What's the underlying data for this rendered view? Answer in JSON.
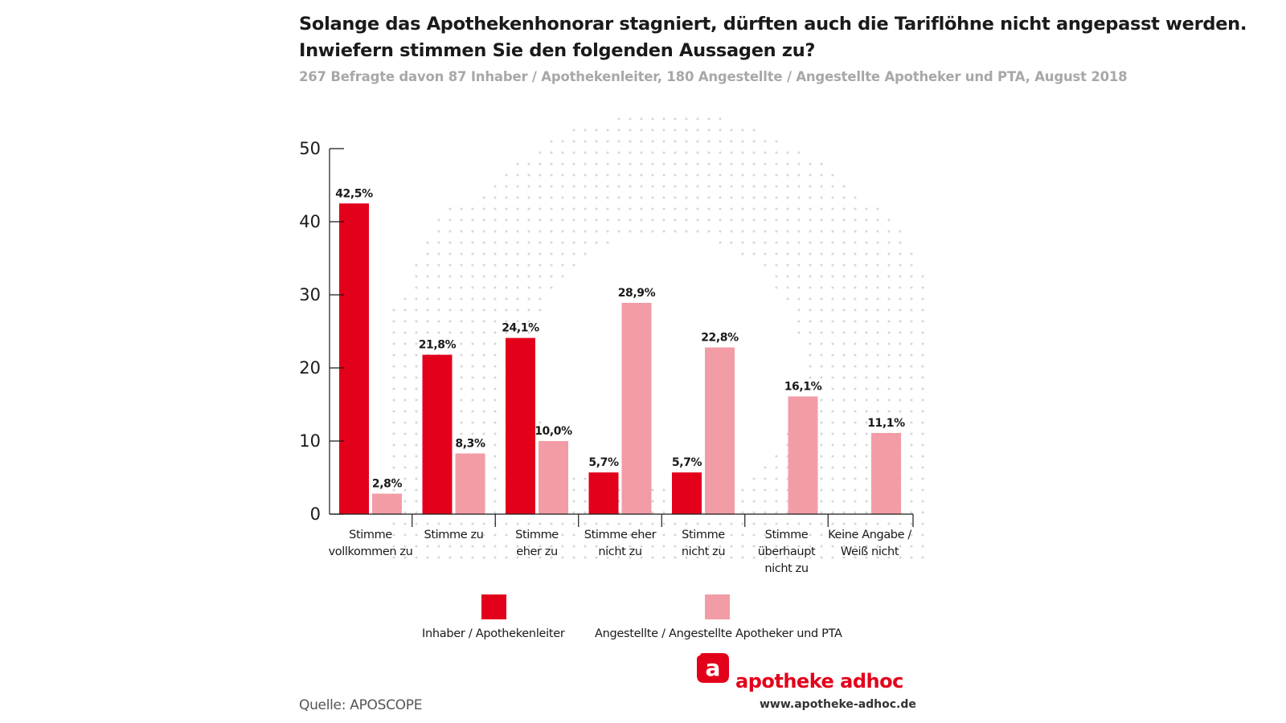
{
  "header": {
    "title_line1": "Solange das Apothekenhonorar stagniert, dürften auch die Tariflöhne nicht angepasst werden.",
    "title_line2": "Inwiefern stimmen Sie den folgenden Aussagen zu?",
    "subtitle": "267 Befragte davon 87 Inhaber / Apothekenleiter, 180 Angestellte / Angestellte Apotheker und PTA, August 2018"
  },
  "chart_data": {
    "type": "bar",
    "categories": [
      [
        "Stimme",
        "vollkommen zu"
      ],
      [
        "Stimme zu"
      ],
      [
        "Stimme",
        "eher zu"
      ],
      [
        "Stimme eher",
        "nicht zu"
      ],
      [
        "Stimme",
        "nicht zu"
      ],
      [
        "Stimme",
        "überhaupt",
        "nicht zu"
      ],
      [
        "Keine Angabe /",
        "Weiß nicht"
      ]
    ],
    "series": [
      {
        "name": "Inhaber / Apothekenleiter",
        "color": "#e3001b",
        "values": [
          42.5,
          21.8,
          24.1,
          5.7,
          5.7,
          null,
          null
        ],
        "labels": [
          "42,5%",
          "21,8%",
          "24,1%",
          "5,7%",
          "5,7%",
          null,
          null
        ]
      },
      {
        "name": "Angestellte / Angestellte Apotheker und PTA",
        "color": "#f29ca6",
        "values": [
          2.8,
          8.3,
          10.0,
          28.9,
          22.8,
          16.1,
          11.1
        ],
        "labels": [
          "2,8%",
          "8,3%",
          "10,0%",
          "28,9%",
          "22,8%",
          "16,1%",
          "11,1%"
        ]
      }
    ],
    "y_ticks": [
      "0",
      "10",
      "20",
      "30",
      "40",
      "50"
    ],
    "ylim": [
      0,
      50
    ],
    "xlabel": "",
    "ylabel": "",
    "grid": false,
    "legend": "bottom"
  },
  "footer": {
    "source": "Quelle: APOSCOPE",
    "brand": "apotheke adhoc",
    "url": "www.apotheke-adhoc.de"
  }
}
